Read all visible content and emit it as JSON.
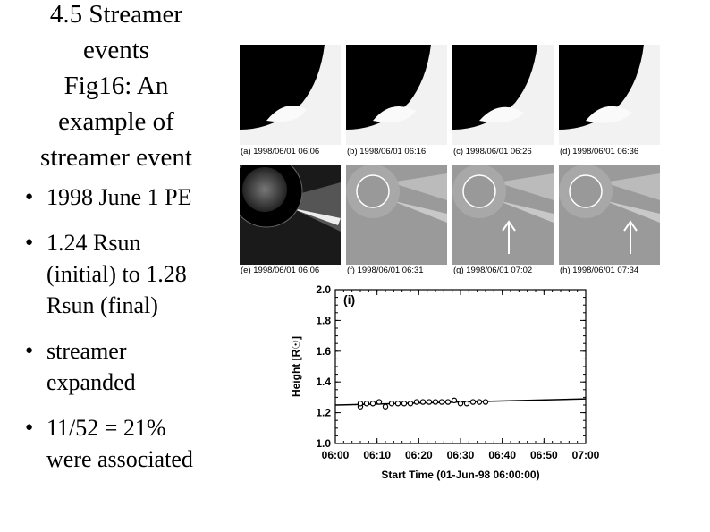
{
  "slide": {
    "title_lines": [
      "4.5 Streamer",
      "events",
      "Fig16: An",
      "example of",
      "streamer event"
    ],
    "bullets": [
      {
        "bullet": "●",
        "lines": [
          "1998 June 1 PE"
        ]
      },
      {
        "bullet": "●",
        "lines": [
          "1.24 Rsun",
          "(initial) to 1.28",
          "Rsun (final)"
        ]
      },
      {
        "bullet": "●",
        "lines": [
          "streamer",
          "expanded"
        ]
      },
      {
        "bullet": "●",
        "lines": [
          "11/52 = 21%",
          "were associated"
        ]
      }
    ]
  },
  "figure": {
    "top_row_captions": [
      "(a) 1998/06/01 06:06",
      "(b) 1998/06/01 06:16",
      "(c) 1998/06/01 06:26",
      "(d) 1998/06/01 06:36"
    ],
    "bottom_row_captions": [
      "(e) 1998/06/01 06:06",
      "(f) 1998/06/01 06:31",
      "(g) 1998/06/01 07:02",
      "(h) 1998/06/01 07:34"
    ]
  },
  "chart_data": {
    "type": "scatter",
    "panel_label": "(i)",
    "xlabel": "Start Time (01-Jun-98 06:00:00)",
    "ylabel": "Height [R☉]",
    "x_ticks": [
      "06:00",
      "06:10",
      "06:20",
      "06:30",
      "06:40",
      "06:50",
      "07:00"
    ],
    "y_ticks": [
      "1.0",
      "1.2",
      "1.4",
      "1.6",
      "1.8",
      "2.0"
    ],
    "xlim_minutes": [
      0,
      60
    ],
    "ylim": [
      1.0,
      2.0
    ],
    "points_minutes": [
      6,
      6,
      7.5,
      9,
      10.5,
      12,
      13.5,
      15,
      16.5,
      18,
      19.5,
      21,
      22.5,
      24,
      25.5,
      27,
      28.5,
      30,
      31.5,
      33,
      34.5,
      36
    ],
    "points_height": [
      1.24,
      1.26,
      1.26,
      1.26,
      1.27,
      1.24,
      1.26,
      1.26,
      1.26,
      1.26,
      1.27,
      1.27,
      1.27,
      1.27,
      1.27,
      1.27,
      1.28,
      1.26,
      1.26,
      1.27,
      1.27,
      1.27
    ],
    "fit_line": {
      "x": [
        0,
        60
      ],
      "y": [
        1.25,
        1.29
      ]
    },
    "grid": false
  }
}
